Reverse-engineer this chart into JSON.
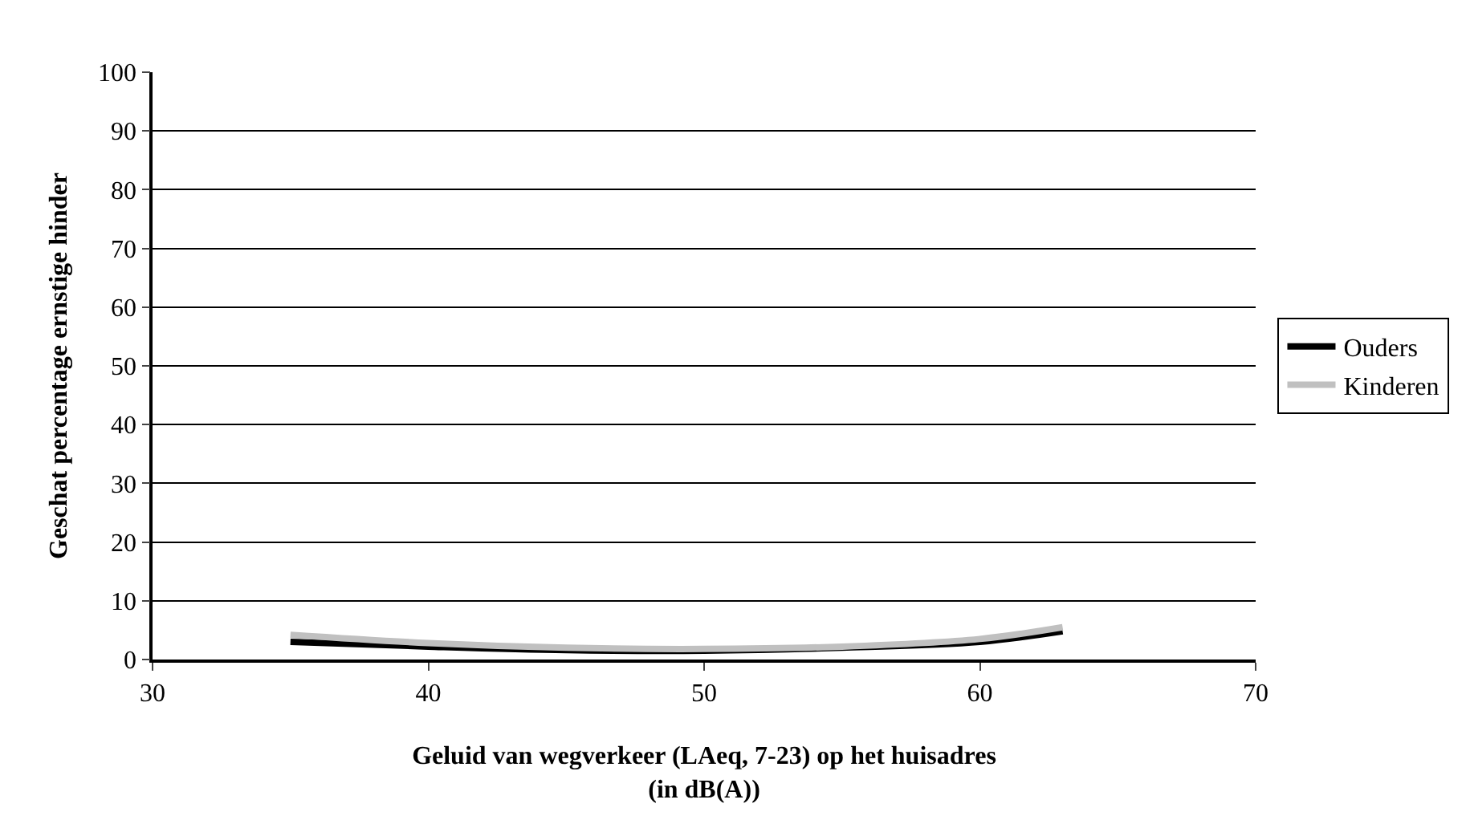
{
  "chart_data": {
    "type": "line",
    "xlabel": "Geluid van wegverkeer (LAeq, 7-23) op het huisadres\n(in dB(A))",
    "ylabel": "Geschat percentage ernstige hinder",
    "x": [
      35,
      40,
      45,
      50,
      55,
      60,
      63
    ],
    "series": [
      {
        "name": "Ouders",
        "color": "#000000",
        "values": [
          3.0,
          2.2,
          1.6,
          1.5,
          2.0,
          3.0,
          4.8
        ]
      },
      {
        "name": "Kinderen",
        "color": "#c0c0c0",
        "values": [
          4.2,
          2.8,
          2.0,
          1.8,
          2.2,
          3.5,
          5.5
        ]
      }
    ],
    "xlim": [
      30,
      70
    ],
    "xticks": [
      30,
      40,
      50,
      60,
      70
    ],
    "ylim": [
      0,
      100
    ],
    "yticks": [
      0,
      10,
      20,
      30,
      40,
      50,
      60,
      70,
      80,
      90,
      100
    ],
    "grid": "y",
    "legend": "right",
    "marker": "none",
    "line_style": "solid"
  }
}
